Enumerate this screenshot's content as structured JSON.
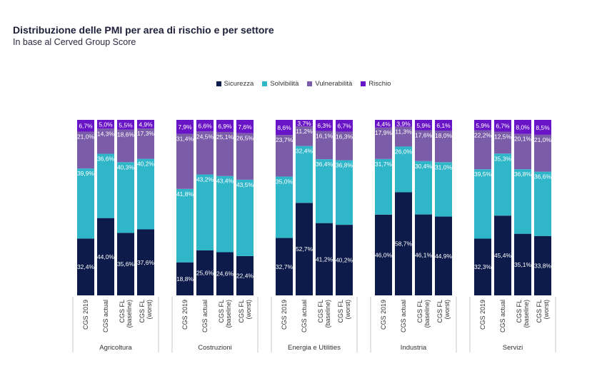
{
  "title": "Distribuzione delle PMI per area di rischio e per settore",
  "subtitle": "In base al Cerved Group Score",
  "chart_data": {
    "type": "bar",
    "stacked": true,
    "normalized": true,
    "legend_position": "top-center",
    "series_names": [
      "Sicurezza",
      "Solvibilità",
      "Vulnerabilità",
      "Rischio"
    ],
    "colors": [
      "#0d1b4a",
      "#2fb6c9",
      "#7a5ca8",
      "#6a14c8"
    ],
    "bar_labels": [
      "CGS 2019",
      "CGS actual",
      "CGS FL (baseline)",
      "CGS FL (worst)"
    ],
    "groups": [
      {
        "name": "Agricoltura",
        "bars": [
          {
            "values": [
              32.4,
              39.9,
              21.0,
              6.7
            ],
            "labels": [
              "32,4%",
              "39,9%",
              "21,0%",
              "6,7%"
            ]
          },
          {
            "values": [
              44.0,
              36.6,
              14.3,
              5.0
            ],
            "labels": [
              "44,0%",
              "36,6%",
              "14,3%",
              "5,0%"
            ]
          },
          {
            "values": [
              35.6,
              40.3,
              18.6,
              5.5
            ],
            "labels": [
              "35,6%",
              "40,3%",
              "18,6%",
              "5,5%"
            ]
          },
          {
            "values": [
              37.6,
              40.2,
              17.3,
              4.9
            ],
            "labels": [
              "37,6%",
              "40,2%",
              "17,3%",
              "4,9%"
            ]
          }
        ]
      },
      {
        "name": "Costruzioni",
        "bars": [
          {
            "values": [
              18.8,
              41.8,
              31.4,
              7.9
            ],
            "labels": [
              "18,8%",
              "41,8%",
              "31,4%",
              "7,9%"
            ]
          },
          {
            "values": [
              25.6,
              43.2,
              24.5,
              6.6
            ],
            "labels": [
              "25,6%",
              "43,2%",
              "24,5%",
              "6,6%"
            ]
          },
          {
            "values": [
              24.6,
              43.4,
              25.1,
              6.9
            ],
            "labels": [
              "24,6%",
              "43,4%",
              "25,1%",
              "6,9%"
            ]
          },
          {
            "values": [
              22.4,
              43.5,
              26.5,
              7.6
            ],
            "labels": [
              "22,4%",
              "43,5%",
              "26,5%",
              "7,6%"
            ]
          }
        ]
      },
      {
        "name": "Energia e Utilities",
        "bars": [
          {
            "values": [
              32.7,
              35.0,
              23.7,
              8.6
            ],
            "labels": [
              "32,7%",
              "35,0%",
              "23,7%",
              "8,6%"
            ]
          },
          {
            "values": [
              52.7,
              32.4,
              11.2,
              3.7
            ],
            "labels": [
              "52,7%",
              "32,4%",
              "11,2%",
              "3,7%"
            ]
          },
          {
            "values": [
              41.2,
              36.4,
              16.1,
              6.3
            ],
            "labels": [
              "41,2%",
              "36,4%",
              "16,1%",
              "6,3%"
            ]
          },
          {
            "values": [
              40.2,
              36.8,
              16.3,
              6.7
            ],
            "labels": [
              "40,2%",
              "36,8%",
              "16,3%",
              "6,7%"
            ]
          }
        ]
      },
      {
        "name": "Industria",
        "bars": [
          {
            "values": [
              46.0,
              31.7,
              17.9,
              4.4
            ],
            "labels": [
              "46,0%",
              "31,7%",
              "17,9%",
              "4,4%"
            ]
          },
          {
            "values": [
              58.7,
              26.0,
              11.3,
              3.9
            ],
            "labels": [
              "58,7%",
              "26,0%",
              "11,3%",
              "3,9%"
            ]
          },
          {
            "values": [
              46.1,
              30.4,
              17.6,
              5.9
            ],
            "labels": [
              "46,1%",
              "30,4%",
              "17,6%",
              "5,9%"
            ]
          },
          {
            "values": [
              44.9,
              31.0,
              18.0,
              6.1
            ],
            "labels": [
              "44,9%",
              "31,0%",
              "18,0%",
              "6,1%"
            ]
          }
        ]
      },
      {
        "name": "Servizi",
        "bars": [
          {
            "values": [
              32.3,
              39.5,
              22.2,
              5.9
            ],
            "labels": [
              "32,3%",
              "39,5%",
              "22,2%",
              "5,9%"
            ]
          },
          {
            "values": [
              45.4,
              35.3,
              12.5,
              6.7
            ],
            "labels": [
              "45,4%",
              "35,3%",
              "12,5%",
              "6,7%"
            ]
          },
          {
            "values": [
              35.1,
              36.8,
              20.1,
              8.0
            ],
            "labels": [
              "35,1%",
              "36,8%",
              "20,1%",
              "8,0%"
            ]
          },
          {
            "values": [
              33.8,
              36.6,
              21.0,
              8.5
            ],
            "labels": [
              "33,8%",
              "36,6%",
              "21,0%",
              "8,5%"
            ]
          }
        ]
      }
    ]
  }
}
